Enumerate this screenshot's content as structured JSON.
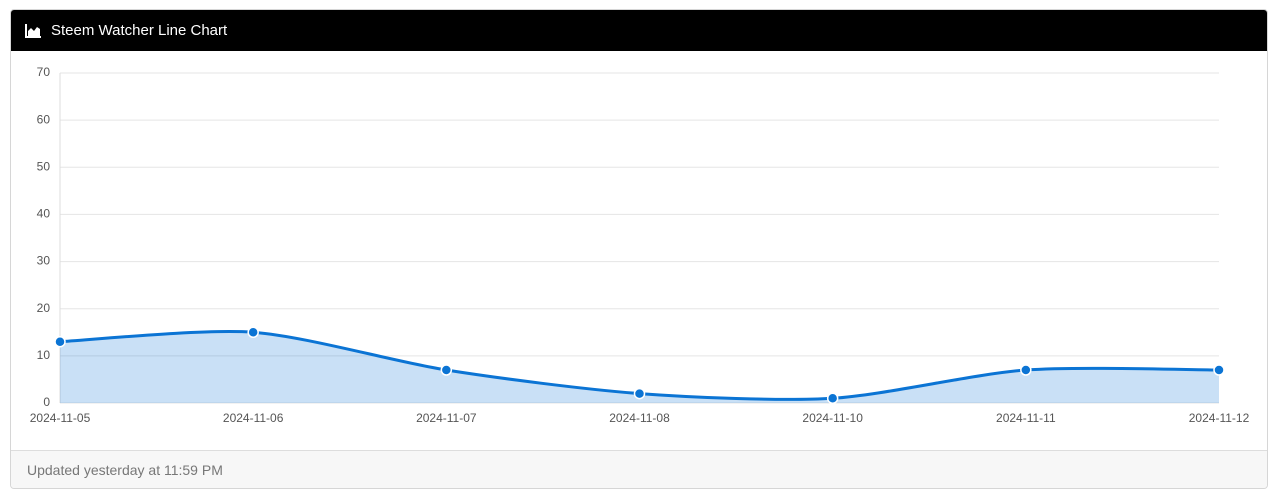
{
  "chart_data": {
    "type": "line",
    "title": "Steem Watcher Line Chart",
    "categories": [
      "2024-11-05",
      "2024-11-06",
      "2024-11-07",
      "2024-11-08",
      "2024-11-10",
      "2024-11-11",
      "2024-11-12"
    ],
    "series": [
      {
        "color": "#0b74d4",
        "values": [
          13,
          15,
          7,
          2,
          1,
          7,
          7
        ]
      }
    ],
    "ylim": [
      0,
      70
    ],
    "yticks": [
      0,
      10,
      20,
      30,
      40,
      50,
      60,
      70
    ],
    "grid": true,
    "area": true
  },
  "card": {
    "footer": "Updated yesterday at 11:59 PM"
  }
}
